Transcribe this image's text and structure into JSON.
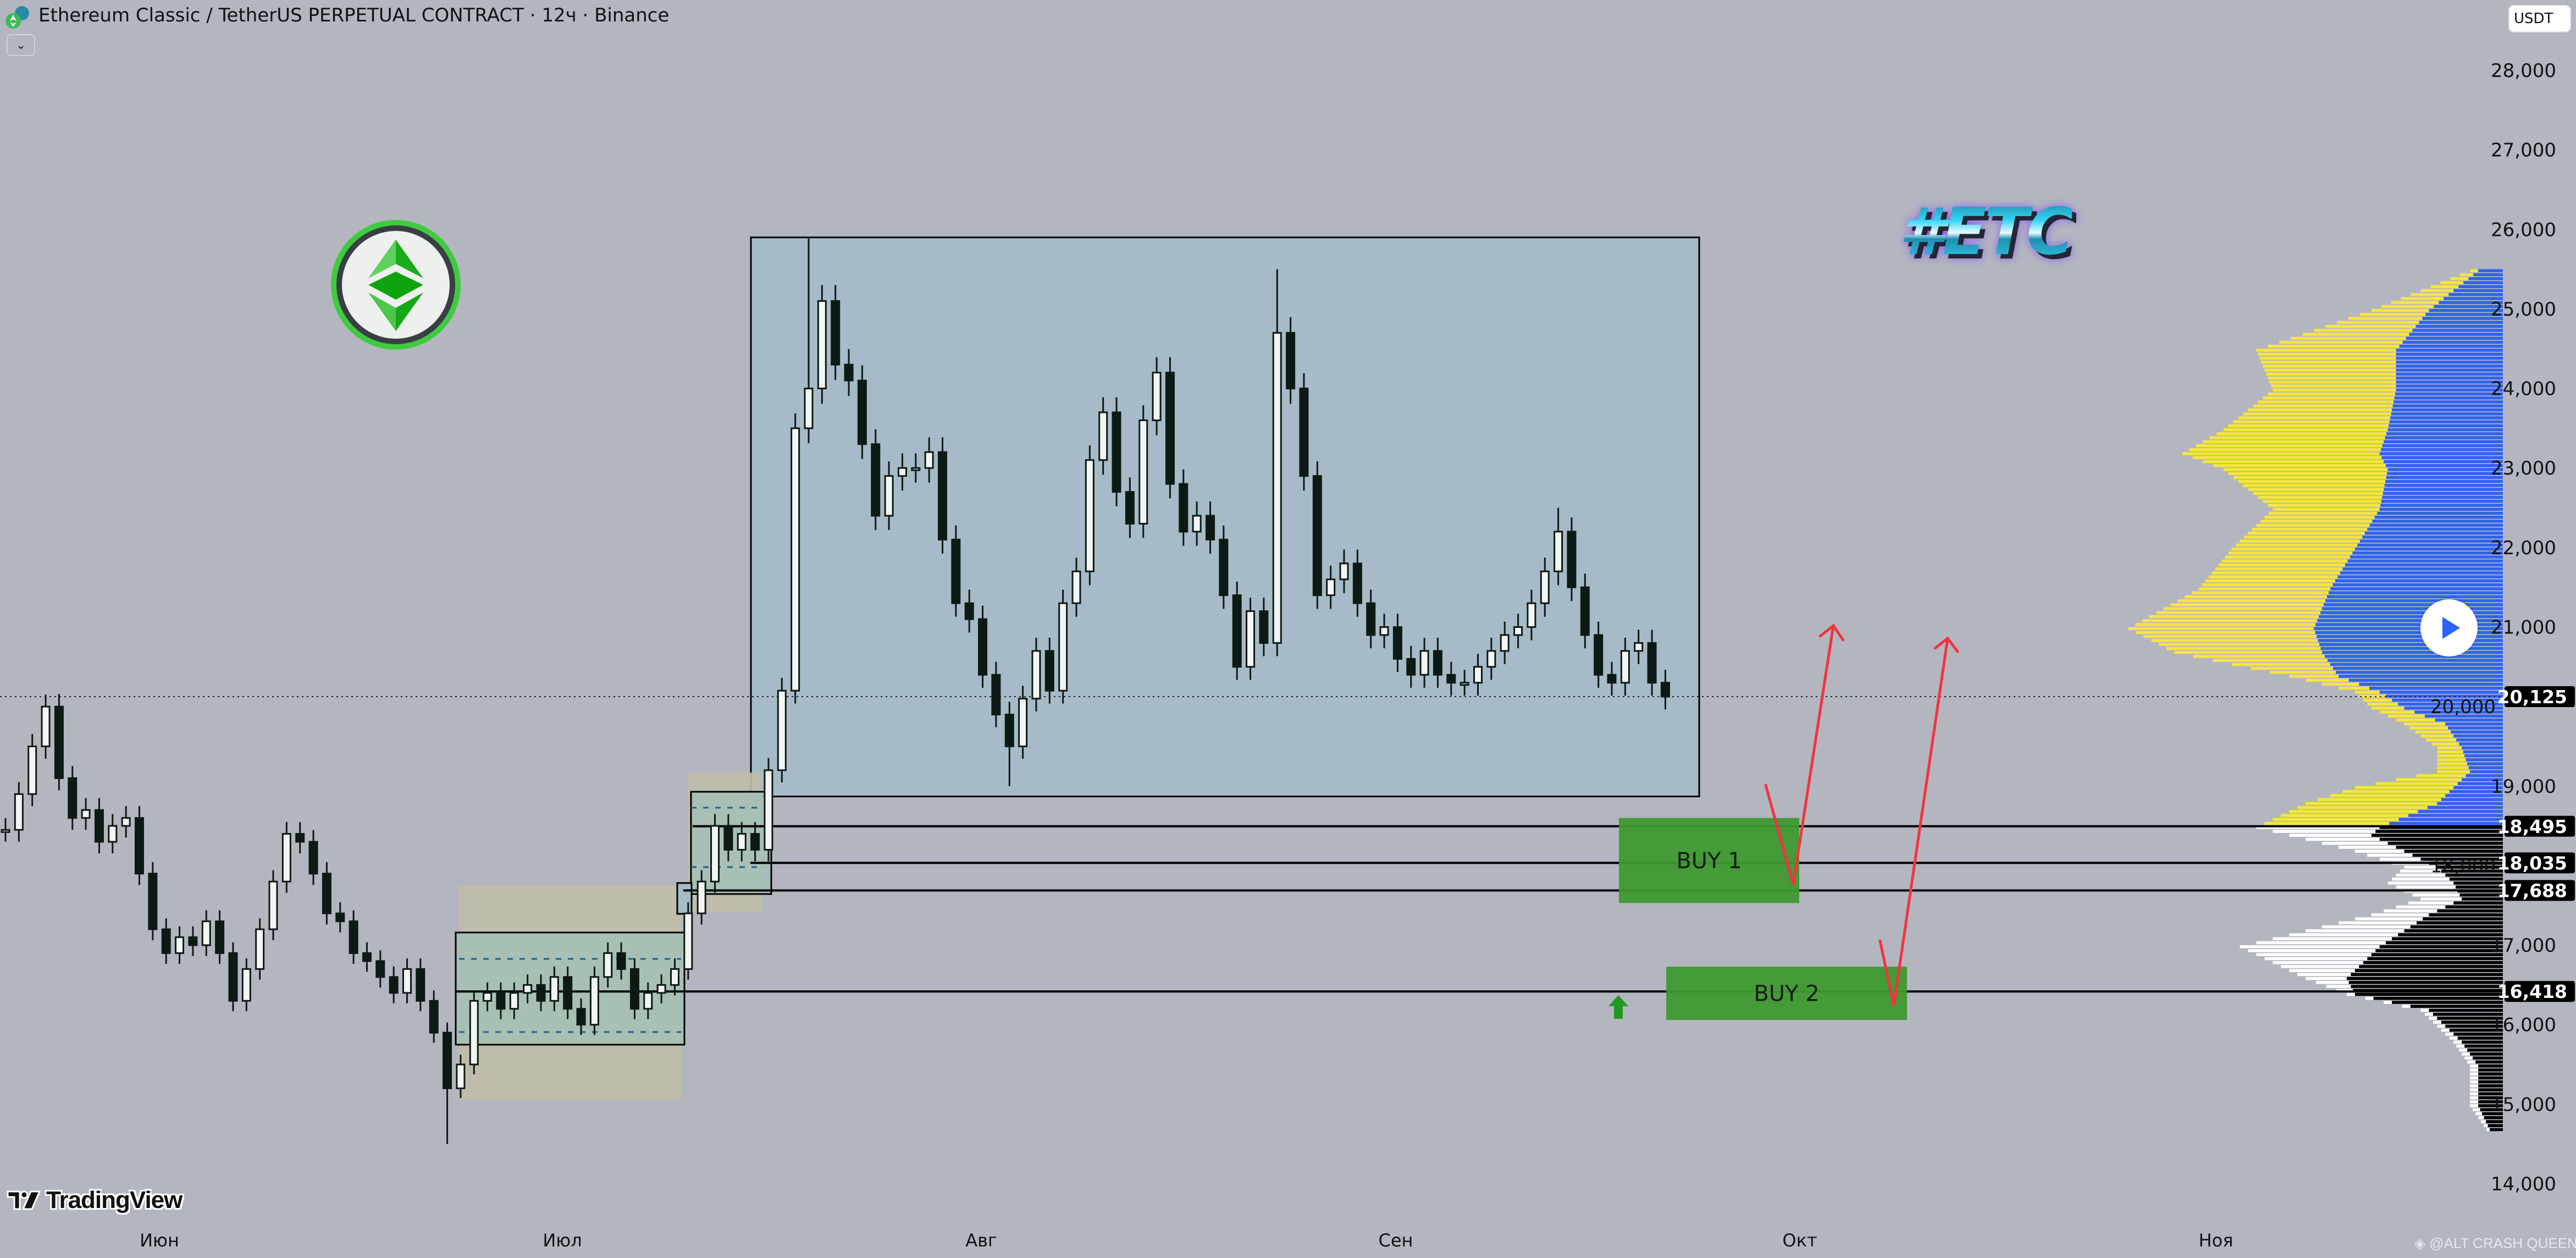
{
  "header": {
    "title": "Ethereum Classic / TetherUS PERPETUAL CONTRACT · 12ч · Binance",
    "collapse_icon": "chevron-down-icon",
    "currency": "USDT"
  },
  "branding": {
    "logo_text": "TradingView",
    "watermark": "@ALT CRASH QUEEN",
    "tag": "#ETC"
  },
  "colors": {
    "background": "#b3b6bf",
    "range_box": "#a3bcc8",
    "buy_zone": "#3e9a2f",
    "arrows": "#f2343f",
    "profile_up": "#2f62f0",
    "profile_up_value": "#f7e63a",
    "profile_down": "#000000",
    "profile_down_value": "#ffffff"
  },
  "zones": [
    {
      "label": "BUY 1",
      "price_top": 18600,
      "price_bottom": 17530
    },
    {
      "label": "BUY 2",
      "price_top": 16730,
      "price_bottom": 16060
    }
  ],
  "chart_data": {
    "type": "candlestick",
    "title": "",
    "y_axis": {
      "ticks": [
        "28,000",
        "27,000",
        "26,000",
        "25,000",
        "24,000",
        "23,000",
        "22,000",
        "21,000",
        "20,000",
        "19,000",
        "18,000",
        "17,000",
        "16,000",
        "15,000",
        "14,000"
      ],
      "ylim": [
        14000,
        28000
      ]
    },
    "x_axis": {
      "ticks": [
        "Июн",
        "Июл",
        "Авг",
        "Сен",
        "Окт",
        "Ноя"
      ]
    },
    "grid": false,
    "last_price": 20125,
    "price_labels": [
      "20,125",
      "18,495",
      "18,035",
      "17,688",
      "16,418"
    ],
    "levels": [
      18495,
      18035,
      17688,
      16418
    ],
    "range_box": {
      "price_top": 25900,
      "price_bottom": 18870
    },
    "closes": [
      18450,
      18900,
      19500,
      20000,
      19100,
      18600,
      18700,
      18300,
      18500,
      18600,
      17900,
      17200,
      16900,
      17100,
      17000,
      17300,
      16900,
      16300,
      16700,
      17200,
      17800,
      18400,
      18300,
      17900,
      17400,
      17300,
      16900,
      16800,
      16600,
      16400,
      16700,
      16300,
      15900,
      15200,
      15500,
      16300,
      16400,
      16200,
      16400,
      16500,
      16300,
      16600,
      16200,
      16000,
      16600,
      16900,
      16700,
      16200,
      16400,
      16500,
      16700,
      17400,
      17800,
      18500,
      18200,
      18400,
      18200,
      19200,
      20200,
      23500,
      24000,
      25100,
      24300,
      24100,
      23300,
      22400,
      22900,
      23000,
      23000,
      23200,
      22100,
      21300,
      21100,
      20400,
      19900,
      19500,
      20100,
      20700,
      20200,
      21300,
      21700,
      23100,
      23700,
      22700,
      22300,
      23600,
      24200,
      22800,
      22200,
      22400,
      22100,
      21400,
      20500,
      21200,
      20800,
      24700,
      24000,
      22900,
      21400,
      21600,
      21800,
      21300,
      20900,
      21000,
      20600,
      20400,
      20700,
      20400,
      20300,
      20300,
      20500,
      20700,
      20900,
      21000,
      21300,
      21700,
      22200,
      21500,
      20900,
      20400,
      20300,
      20700,
      20800,
      20300,
      20125
    ],
    "extremes": {
      "3": {
        "high": 20150
      },
      "33": {
        "low": 14500
      },
      "60": {
        "high": 25900
      },
      "75": {
        "low": 19000
      },
      "95": {
        "high": 25500
      },
      "116": {
        "high": 22500
      }
    },
    "volume_profile": [
      [
        25500,
        20,
        15
      ],
      [
        25000,
        80,
        45
      ],
      [
        24500,
        150,
        65
      ],
      [
        24000,
        140,
        65
      ],
      [
        23500,
        170,
        70
      ],
      [
        23200,
        195,
        75
      ],
      [
        23000,
        170,
        70
      ],
      [
        22500,
        140,
        75
      ],
      [
        22000,
        165,
        90
      ],
      [
        21500,
        185,
        105
      ],
      [
        21000,
        228,
        115
      ],
      [
        20700,
        200,
        110
      ],
      [
        20400,
        130,
        100
      ],
      [
        20200,
        90,
        75
      ],
      [
        20000,
        80,
        60
      ],
      [
        19800,
        60,
        35
      ],
      [
        19500,
        40,
        25
      ],
      [
        19200,
        40,
        20
      ],
      [
        19000,
        90,
        30
      ],
      [
        18800,
        120,
        40
      ],
      [
        18500,
        150,
        75
      ],
      [
        18400,
        130,
        80
      ],
      [
        18200,
        90,
        60
      ],
      [
        18000,
        60,
        40
      ],
      [
        17800,
        70,
        30
      ],
      [
        17600,
        50,
        25
      ],
      [
        17400,
        80,
        45
      ],
      [
        17200,
        120,
        60
      ],
      [
        17000,
        160,
        75
      ],
      [
        16800,
        140,
        85
      ],
      [
        16600,
        120,
        95
      ],
      [
        16400,
        95,
        90
      ],
      [
        16200,
        50,
        45
      ],
      [
        16000,
        40,
        35
      ],
      [
        15800,
        30,
        25
      ],
      [
        15500,
        20,
        15
      ],
      [
        15000,
        20,
        15
      ],
      [
        14700,
        10,
        8
      ]
    ],
    "profile_value_area_split": 18500
  }
}
